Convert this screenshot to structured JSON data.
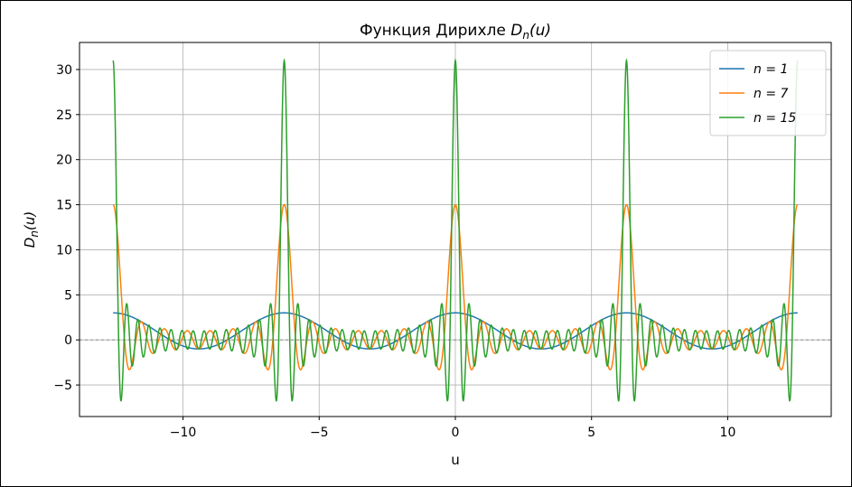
{
  "chart_data": {
    "type": "line",
    "title": "Функция Дирихле D_n(u)",
    "title_prefix": "Функция Дирихле ",
    "title_math": "D",
    "title_sub": "n",
    "title_arg": "(u)",
    "xlabel": "u",
    "ylabel_math": "D",
    "ylabel_sub": "n",
    "ylabel_arg": "(u)",
    "xlim": [
      -13.8,
      13.8
    ],
    "ylim": [
      -8.5,
      33.0
    ],
    "x_range": [
      -12.566,
      12.566
    ],
    "xticks": [
      -10,
      -5,
      0,
      5,
      10
    ],
    "xtick_labels": [
      "−10",
      "−5",
      "0",
      "5",
      "10"
    ],
    "yticks": [
      -5,
      0,
      5,
      10,
      15,
      20,
      25,
      30
    ],
    "ytick_labels": [
      "−5",
      "0",
      "5",
      "10",
      "15",
      "20",
      "25",
      "30"
    ],
    "grid": true,
    "zero_line": true,
    "legend_placement": "top-right",
    "series": [
      {
        "name": "n = 1",
        "n": 1,
        "color": "#1f77b4",
        "peak_value": 3,
        "function": "sin((n+0.5)u)/sin(u/2)"
      },
      {
        "name": "n = 7",
        "n": 7,
        "color": "#ff7f0e",
        "peak_value": 15,
        "function": "sin((n+0.5)u)/sin(u/2)"
      },
      {
        "name": "n = 15",
        "n": 15,
        "color": "#2ca02c",
        "peak_value": 31,
        "function": "sin((n+0.5)u)/sin(u/2)"
      }
    ]
  }
}
